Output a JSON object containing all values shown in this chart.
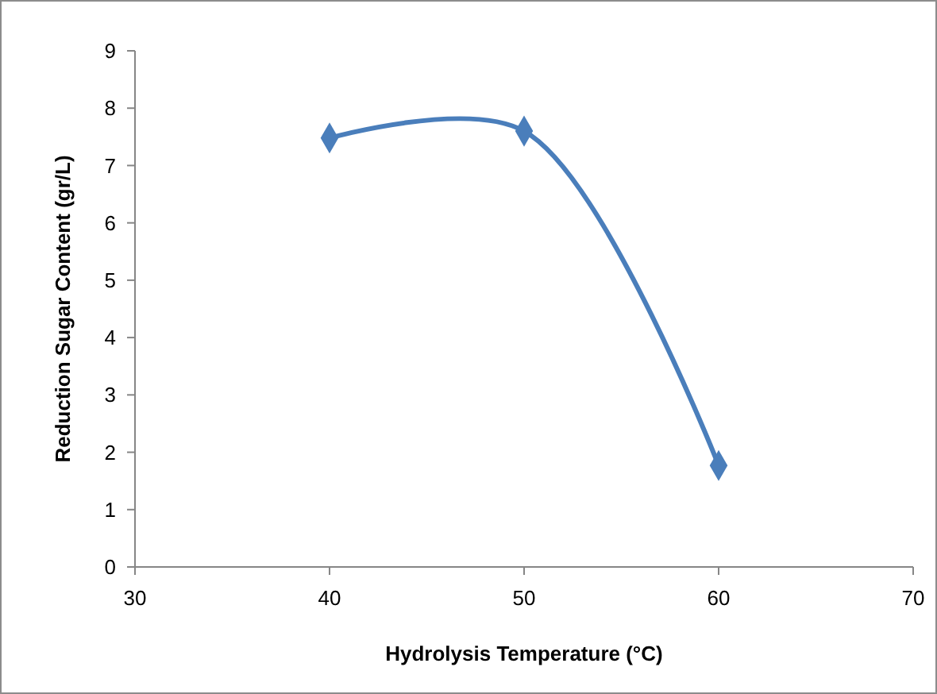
{
  "chart_data": {
    "type": "line",
    "xlabel": "Hydrolysis Temperature (°C)",
    "ylabel": "Reduction Sugar Content (gr/L)",
    "x": [
      40,
      50,
      60
    ],
    "series": [
      {
        "color": "#4a7ebb",
        "values": [
          7.48,
          7.6,
          1.77
        ]
      }
    ],
    "xlim": [
      30,
      70
    ],
    "xticks": [
      30,
      40,
      50,
      60,
      70
    ],
    "ylim": [
      0,
      9
    ],
    "yticks": [
      0,
      1,
      2,
      3,
      4,
      5,
      6,
      7,
      8,
      9
    ],
    "grid": false,
    "marker": "diamond",
    "line_style": "solid"
  }
}
